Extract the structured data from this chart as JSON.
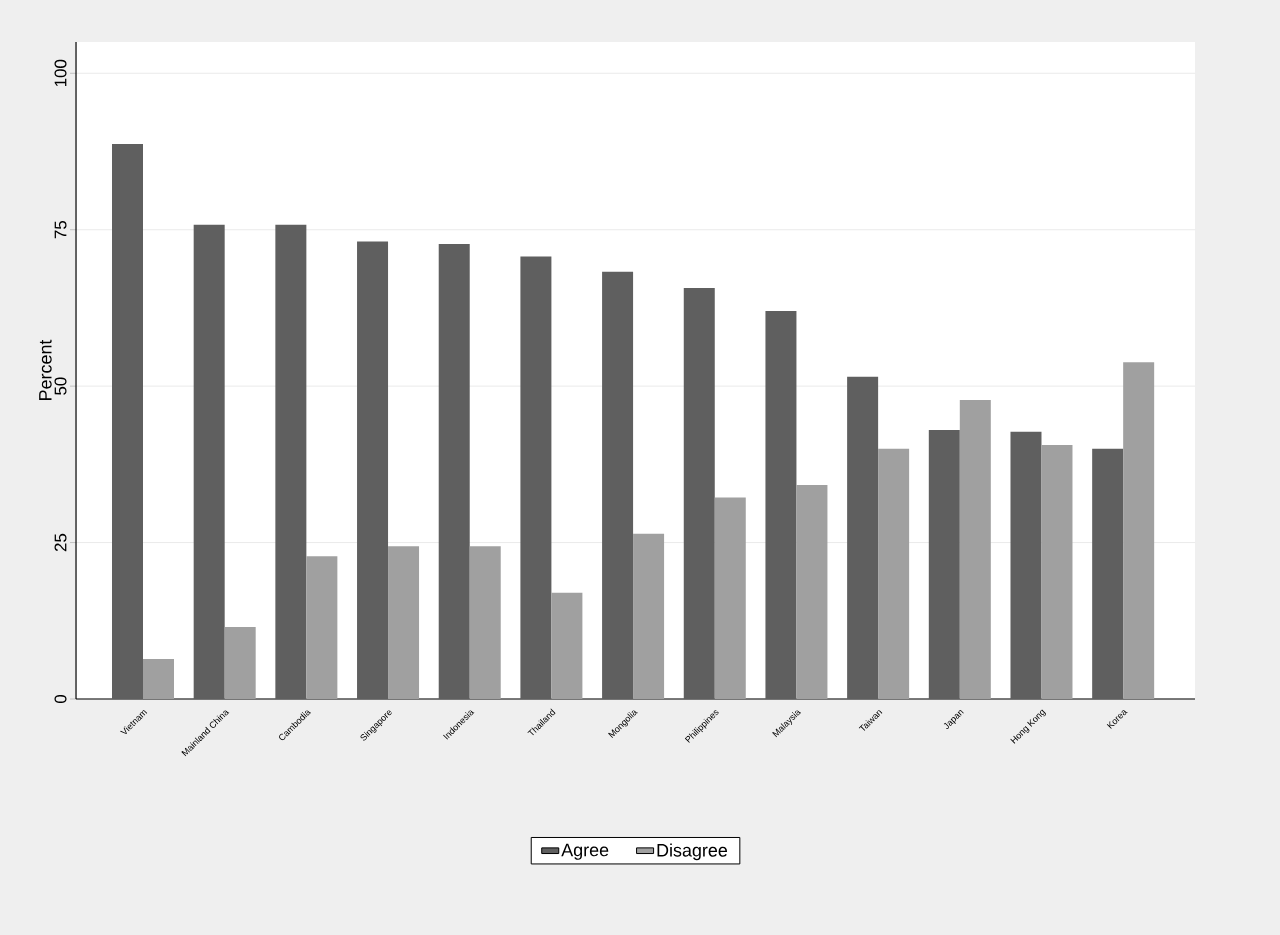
{
  "chart_data": {
    "type": "bar",
    "ylabel": "Percent",
    "categories": [
      "Vietnam",
      "Mainland China",
      "Cambodia",
      "Singapore",
      "Indonesia",
      "Thailand",
      "Mongolia",
      "Philippines",
      "Malaysia",
      "Taiwan",
      "Japan",
      "Hong Kong",
      "Korea"
    ],
    "series": [
      {
        "name": "Agree",
        "color": "#5f5f5f",
        "values": [
          88.7,
          75.8,
          75.8,
          73.1,
          72.7,
          70.7,
          68.3,
          65.7,
          62.0,
          51.5,
          43.0,
          42.7,
          40.0
        ]
      },
      {
        "name": "Disagree",
        "color": "#a0a0a0",
        "values": [
          6.4,
          11.5,
          22.8,
          24.4,
          24.4,
          17.0,
          26.4,
          32.2,
          34.2,
          40.0,
          47.8,
          40.6,
          53.8
        ]
      }
    ],
    "ylim": [
      0,
      105
    ],
    "yticks": [
      0,
      25,
      50,
      75,
      100
    ],
    "grid": "y",
    "legend": "bottom"
  }
}
